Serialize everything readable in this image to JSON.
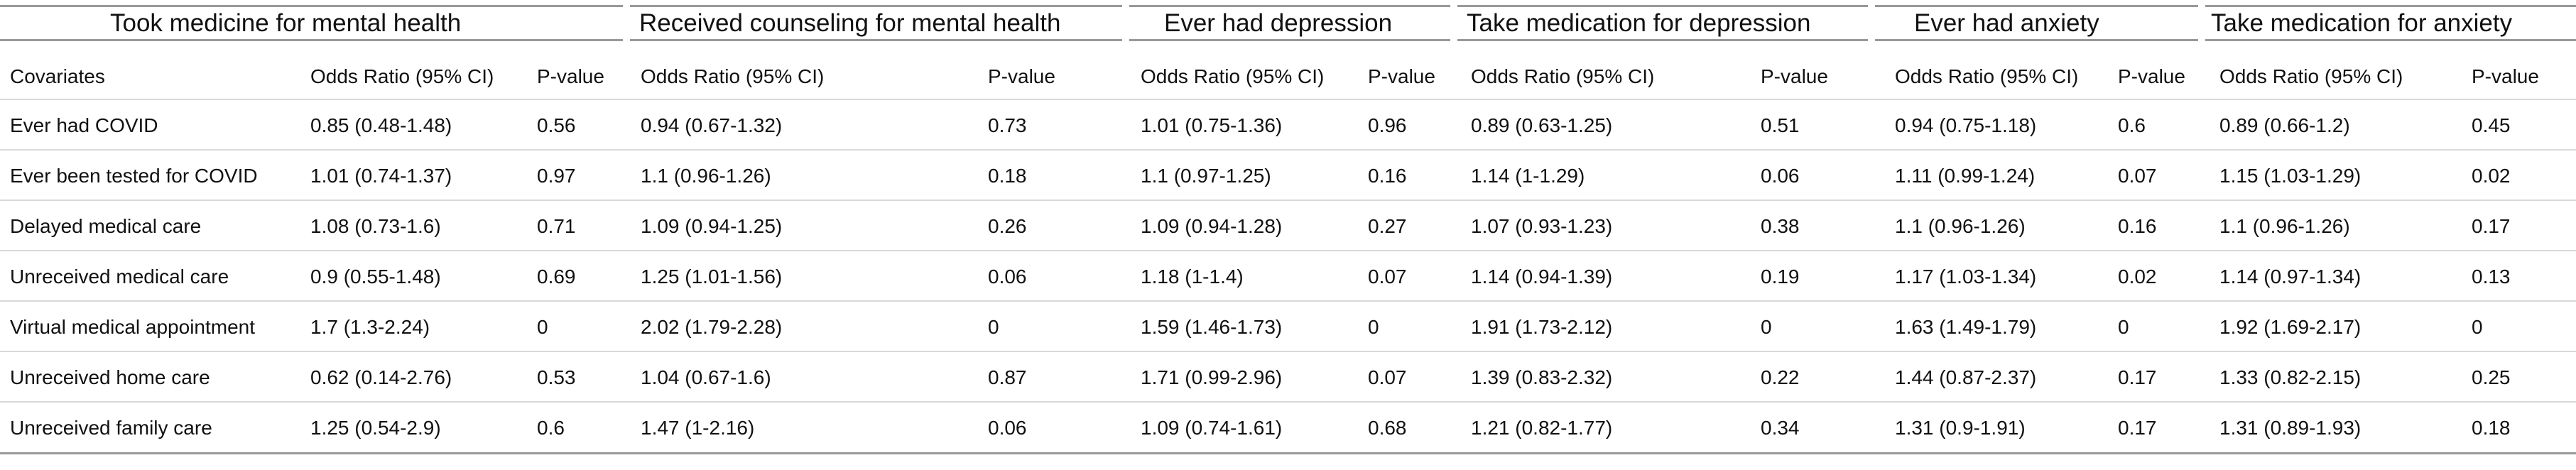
{
  "table": {
    "covariates_header": "Covariates",
    "groups": [
      {
        "title": "Took medicine for mental health",
        "or_header": "Odds Ratio (95% CI)",
        "p_header": "P-value"
      },
      {
        "title": "Received counseling for mental health",
        "or_header": "Odds Ratio (95% CI)",
        "p_header": "P-value"
      },
      {
        "title": "Ever had depression",
        "or_header": "Odds Ratio (95% CI)",
        "p_header": "P-value"
      },
      {
        "title": "Take medication for depression",
        "or_header": "Odds Ratio (95% CI)",
        "p_header": "P-value"
      },
      {
        "title": "Ever had anxiety",
        "or_header": "Odds Ratio (95% CI)",
        "p_header": "P-value"
      },
      {
        "title": "Take medication for anxiety",
        "or_header": "Odds Ratio (95% CI)",
        "p_header": "P-value"
      }
    ],
    "rows": [
      {
        "covariate": "Ever had COVID",
        "cells": [
          {
            "or": "0.85 (0.48-1.48)",
            "p": "0.56"
          },
          {
            "or": "0.94 (0.67-1.32)",
            "p": "0.73"
          },
          {
            "or": "1.01 (0.75-1.36)",
            "p": "0.96"
          },
          {
            "or": "0.89 (0.63-1.25)",
            "p": "0.51"
          },
          {
            "or": "0.94 (0.75-1.18)",
            "p": "0.6"
          },
          {
            "or": "0.89 (0.66-1.2)",
            "p": "0.45"
          }
        ]
      },
      {
        "covariate": "Ever been tested for COVID",
        "cells": [
          {
            "or": "1.01 (0.74-1.37)",
            "p": "0.97"
          },
          {
            "or": "1.1 (0.96-1.26)",
            "p": "0.18"
          },
          {
            "or": "1.1 (0.97-1.25)",
            "p": "0.16"
          },
          {
            "or": "1.14 (1-1.29)",
            "p": "0.06"
          },
          {
            "or": "1.11 (0.99-1.24)",
            "p": "0.07"
          },
          {
            "or": "1.15 (1.03-1.29)",
            "p": "0.02"
          }
        ]
      },
      {
        "covariate": "Delayed medical care",
        "cells": [
          {
            "or": "1.08 (0.73-1.6)",
            "p": "0.71"
          },
          {
            "or": "1.09 (0.94-1.25)",
            "p": "0.26"
          },
          {
            "or": "1.09 (0.94-1.28)",
            "p": "0.27"
          },
          {
            "or": "1.07 (0.93-1.23)",
            "p": "0.38"
          },
          {
            "or": "1.1 (0.96-1.26)",
            "p": "0.16"
          },
          {
            "or": "1.1 (0.96-1.26)",
            "p": "0.17"
          }
        ]
      },
      {
        "covariate": "Unreceived medical care",
        "cells": [
          {
            "or": "0.9 (0.55-1.48)",
            "p": "0.69"
          },
          {
            "or": "1.25 (1.01-1.56)",
            "p": "0.06"
          },
          {
            "or": "1.18 (1-1.4)",
            "p": "0.07"
          },
          {
            "or": "1.14 (0.94-1.39)",
            "p": "0.19"
          },
          {
            "or": "1.17 (1.03-1.34)",
            "p": "0.02"
          },
          {
            "or": "1.14 (0.97-1.34)",
            "p": "0.13"
          }
        ]
      },
      {
        "covariate": "Virtual medical appointment",
        "cells": [
          {
            "or": "1.7 (1.3-2.24)",
            "p": "0"
          },
          {
            "or": "2.02 (1.79-2.28)",
            "p": "0"
          },
          {
            "or": "1.59 (1.46-1.73)",
            "p": "0"
          },
          {
            "or": "1.91 (1.73-2.12)",
            "p": "0"
          },
          {
            "or": "1.63 (1.49-1.79)",
            "p": "0"
          },
          {
            "or": "1.92 (1.69-2.17)",
            "p": "0"
          }
        ]
      },
      {
        "covariate": "Unreceived home care",
        "cells": [
          {
            "or": "0.62 (0.14-2.76)",
            "p": "0.53"
          },
          {
            "or": "1.04 (0.67-1.6)",
            "p": "0.87"
          },
          {
            "or": "1.71 (0.99-2.96)",
            "p": "0.07"
          },
          {
            "or": "1.39 (0.83-2.32)",
            "p": "0.22"
          },
          {
            "or": "1.44 (0.87-2.37)",
            "p": "0.17"
          },
          {
            "or": "1.33 (0.82-2.15)",
            "p": "0.25"
          }
        ]
      },
      {
        "covariate": "Unreceived family care",
        "cells": [
          {
            "or": "1.25 (0.54-2.9)",
            "p": "0.6"
          },
          {
            "or": "1.47 (1-2.16)",
            "p": "0.06"
          },
          {
            "or": "1.09 (0.74-1.61)",
            "p": "0.68"
          },
          {
            "or": "1.21 (0.82-1.77)",
            "p": "0.34"
          },
          {
            "or": "1.31 (0.9-1.91)",
            "p": "0.17"
          },
          {
            "or": "1.31 (0.89-1.93)",
            "p": "0.18"
          }
        ]
      }
    ]
  }
}
